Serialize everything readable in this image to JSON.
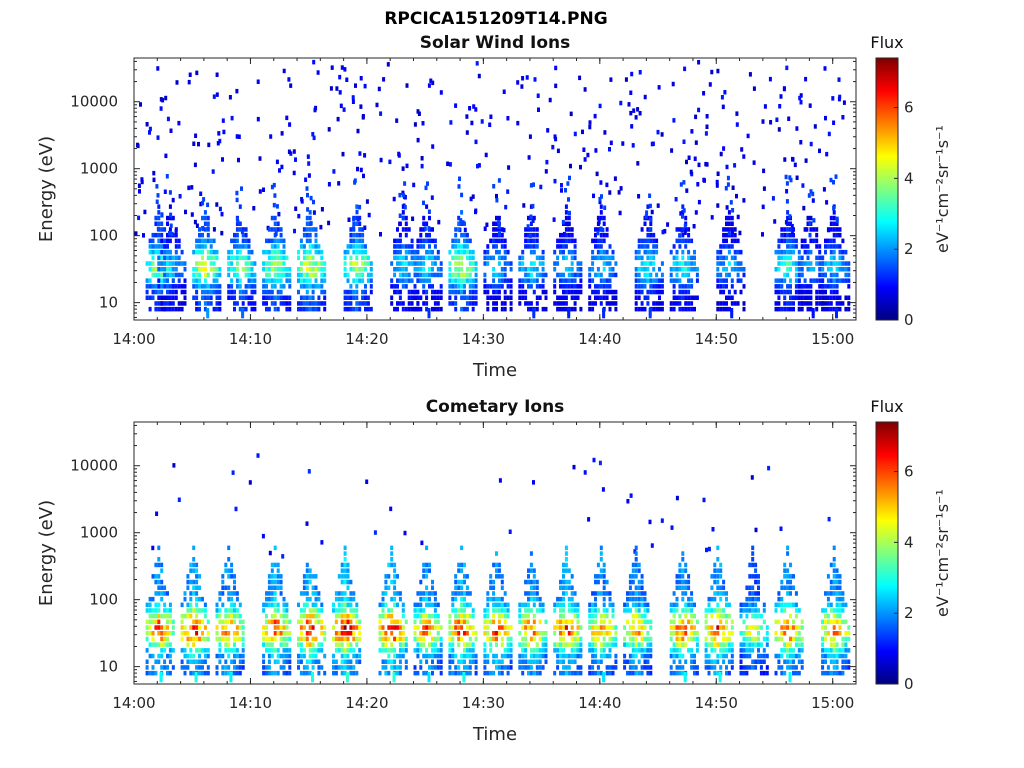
{
  "figure_title": "RPCICA151209T14.PNG",
  "colormap": [
    "#00007f",
    "#0000ff",
    "#007fff",
    "#00ffff",
    "#7fff7f",
    "#ffff00",
    "#ff7f00",
    "#ff0000",
    "#7f0000"
  ],
  "chart_data": [
    {
      "type": "heatmap",
      "title": "Solar Wind Ions",
      "xlabel": "Time",
      "ylabel": "Energy (eV)",
      "x_range": [
        "14:00",
        "15:02"
      ],
      "x_ticks": [
        "14:00",
        "14:10",
        "14:20",
        "14:30",
        "14:40",
        "14:50",
        "15:00"
      ],
      "y_scale": "log",
      "ylim": [
        5.5,
        45000
      ],
      "y_ticks": [
        "10",
        "100",
        "1000",
        "10000"
      ],
      "colorbar": {
        "label": "Flux",
        "units": "eV⁻¹cm⁻²sr⁻¹s⁻¹",
        "range": [
          0,
          7.4
        ],
        "ticks": [
          "0",
          "2",
          "4",
          "6"
        ]
      },
      "bursts": [
        {
          "t": "14:02",
          "flux": 4.0
        },
        {
          "t": "14:03",
          "flux": 2.5
        },
        {
          "t": "14:06",
          "flux": 4.5
        },
        {
          "t": "14:09",
          "flux": 3.8
        },
        {
          "t": "14:12",
          "flux": 4.2
        },
        {
          "t": "14:15",
          "flux": 4.6
        },
        {
          "t": "14:19",
          "flux": 4.3
        },
        {
          "t": "14:23",
          "flux": 2.8
        },
        {
          "t": "14:25",
          "flux": 2.8
        },
        {
          "t": "14:28",
          "flux": 4.5
        },
        {
          "t": "14:31",
          "flux": 2.5
        },
        {
          "t": "14:34",
          "flux": 2.8
        },
        {
          "t": "14:37",
          "flux": 2.5
        },
        {
          "t": "14:40",
          "flux": 2.6
        },
        {
          "t": "14:44",
          "flux": 3.0
        },
        {
          "t": "14:47",
          "flux": 3.0
        },
        {
          "t": "14:51",
          "flux": 2.4
        },
        {
          "t": "14:56",
          "flux": 3.2
        },
        {
          "t": "14:58",
          "flux": 2.2
        },
        {
          "t": "15:00",
          "flux": 2.6
        }
      ],
      "scatter_range_ev": [
        100,
        40000
      ],
      "scatter_flux": 0.8
    },
    {
      "type": "heatmap",
      "title": "Cometary Ions",
      "xlabel": "Time",
      "ylabel": "Energy (eV)",
      "x_range": [
        "14:00",
        "15:02"
      ],
      "x_ticks": [
        "14:00",
        "14:10",
        "14:20",
        "14:30",
        "14:40",
        "14:50",
        "15:00"
      ],
      "y_scale": "log",
      "ylim": [
        5.5,
        45000
      ],
      "y_ticks": [
        "10",
        "100",
        "1000",
        "10000"
      ],
      "colorbar": {
        "label": "Flux",
        "units": "eV⁻¹cm⁻²sr⁻¹s⁻¹",
        "range": [
          0,
          7.4
        ],
        "ticks": [
          "0",
          "2",
          "4",
          "6"
        ]
      },
      "bursts": [
        {
          "t": "14:02",
          "flux": 6.2
        },
        {
          "t": "14:05",
          "flux": 6.6
        },
        {
          "t": "14:08",
          "flux": 6.0
        },
        {
          "t": "14:12",
          "flux": 6.2
        },
        {
          "t": "14:15",
          "flux": 6.6
        },
        {
          "t": "14:18",
          "flux": 7.0
        },
        {
          "t": "14:22",
          "flux": 6.8
        },
        {
          "t": "14:25",
          "flux": 5.8
        },
        {
          "t": "14:28",
          "flux": 6.4
        },
        {
          "t": "14:31",
          "flux": 6.2
        },
        {
          "t": "14:34",
          "flux": 6.0
        },
        {
          "t": "14:37",
          "flux": 6.4
        },
        {
          "t": "14:40",
          "flux": 5.8
        },
        {
          "t": "14:43",
          "flux": 5.6
        },
        {
          "t": "14:47",
          "flux": 6.2
        },
        {
          "t": "14:50",
          "flux": 6.4
        },
        {
          "t": "14:53",
          "flux": 4.6
        },
        {
          "t": "14:56",
          "flux": 6.2
        },
        {
          "t": "15:00",
          "flux": 6.0
        }
      ],
      "scatter_range_ev": [
        400,
        15000
      ],
      "scatter_flux": 0.9
    }
  ]
}
